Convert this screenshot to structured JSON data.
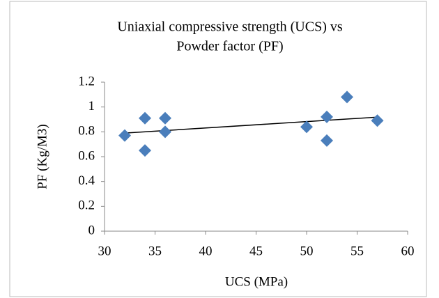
{
  "chart_data": {
    "type": "scatter",
    "title": [
      "Uniaxial compressive strength (UCS) vs",
      "Powder factor (PF)"
    ],
    "x_label": "UCS (MPa)",
    "y_label": "PF (Kg/M3)",
    "x": [
      32,
      34,
      34,
      36,
      36,
      50,
      52,
      52,
      54,
      57
    ],
    "values": [
      0.77,
      0.91,
      0.65,
      0.91,
      0.8,
      0.84,
      0.92,
      0.73,
      1.08,
      0.89
    ],
    "color": "#4a7ebb",
    "trendline": "linear",
    "trendline_color": "#000000",
    "xlim": [
      30,
      60
    ],
    "xticks": [
      30,
      35,
      40,
      45,
      50,
      55,
      60
    ],
    "ylim": [
      0,
      1.2
    ],
    "yticks": [
      0,
      0.2,
      0.4,
      0.6,
      0.8,
      1,
      1.2
    ],
    "grid": false
  }
}
